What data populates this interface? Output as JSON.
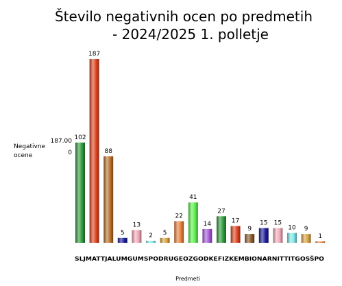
{
  "chart_data": {
    "type": "bar",
    "title_lines": [
      "Število negativnih ocen po predmetih",
      "- 2024/2025 1. polletje"
    ],
    "xlabel": "Predmeti",
    "ylabel_lines": [
      "Negativne",
      "ocene"
    ],
    "y_ticks": [
      "187.00",
      "0"
    ],
    "ylim": [
      0,
      187
    ],
    "categories": [
      "SLJ",
      "MAT",
      "TJA",
      "LUM",
      "GUM",
      "SPO",
      "DRU",
      "GEO",
      "ZGO",
      "DKE",
      "FIZ",
      "KEM",
      "BIO",
      "NAR",
      "NIT",
      "TIT",
      "GOS",
      "ŠPO"
    ],
    "values": [
      102,
      187,
      88,
      5,
      13,
      2,
      5,
      22,
      41,
      14,
      27,
      17,
      9,
      15,
      15,
      10,
      9,
      1
    ],
    "colors": [
      "#2e9a3a",
      "#e0431f",
      "#b8702a",
      "#1e1e9a",
      "#f2a9b8",
      "#7fe8ea",
      "#d9a441",
      "#e8803a",
      "#5cf04a",
      "#a55ad9",
      "#2e9a3a",
      "#e0431f",
      "#8a5a2a",
      "#1e1e9a",
      "#f2a9b8",
      "#7fe8ea",
      "#d9a441",
      "#e8803a"
    ]
  }
}
